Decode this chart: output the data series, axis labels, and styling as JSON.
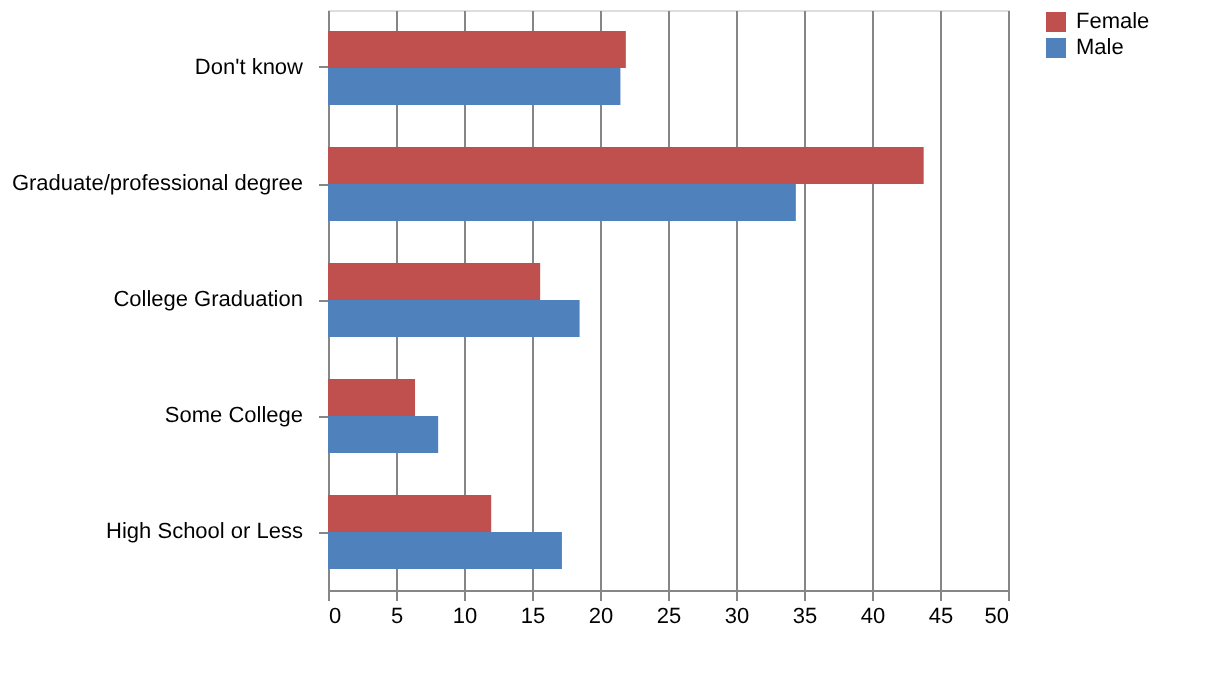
{
  "chart_data": {
    "type": "bar",
    "orientation": "horizontal",
    "categories": [
      "Don't know",
      "Graduate/professional degree",
      "College Graduation",
      "Some College",
      "High School or Less"
    ],
    "series": [
      {
        "name": "Female",
        "color": "#c0504d",
        "values": [
          21.9,
          43.8,
          15.6,
          6.4,
          12.0
        ]
      },
      {
        "name": "Male",
        "color": "#4f81bd",
        "values": [
          21.5,
          34.4,
          18.5,
          8.1,
          17.2
        ]
      }
    ],
    "xlim": [
      0,
      50
    ],
    "xticks": [
      0,
      5,
      10,
      15,
      20,
      25,
      30,
      35,
      40,
      45,
      50
    ],
    "grid": "x",
    "legend": "right"
  }
}
